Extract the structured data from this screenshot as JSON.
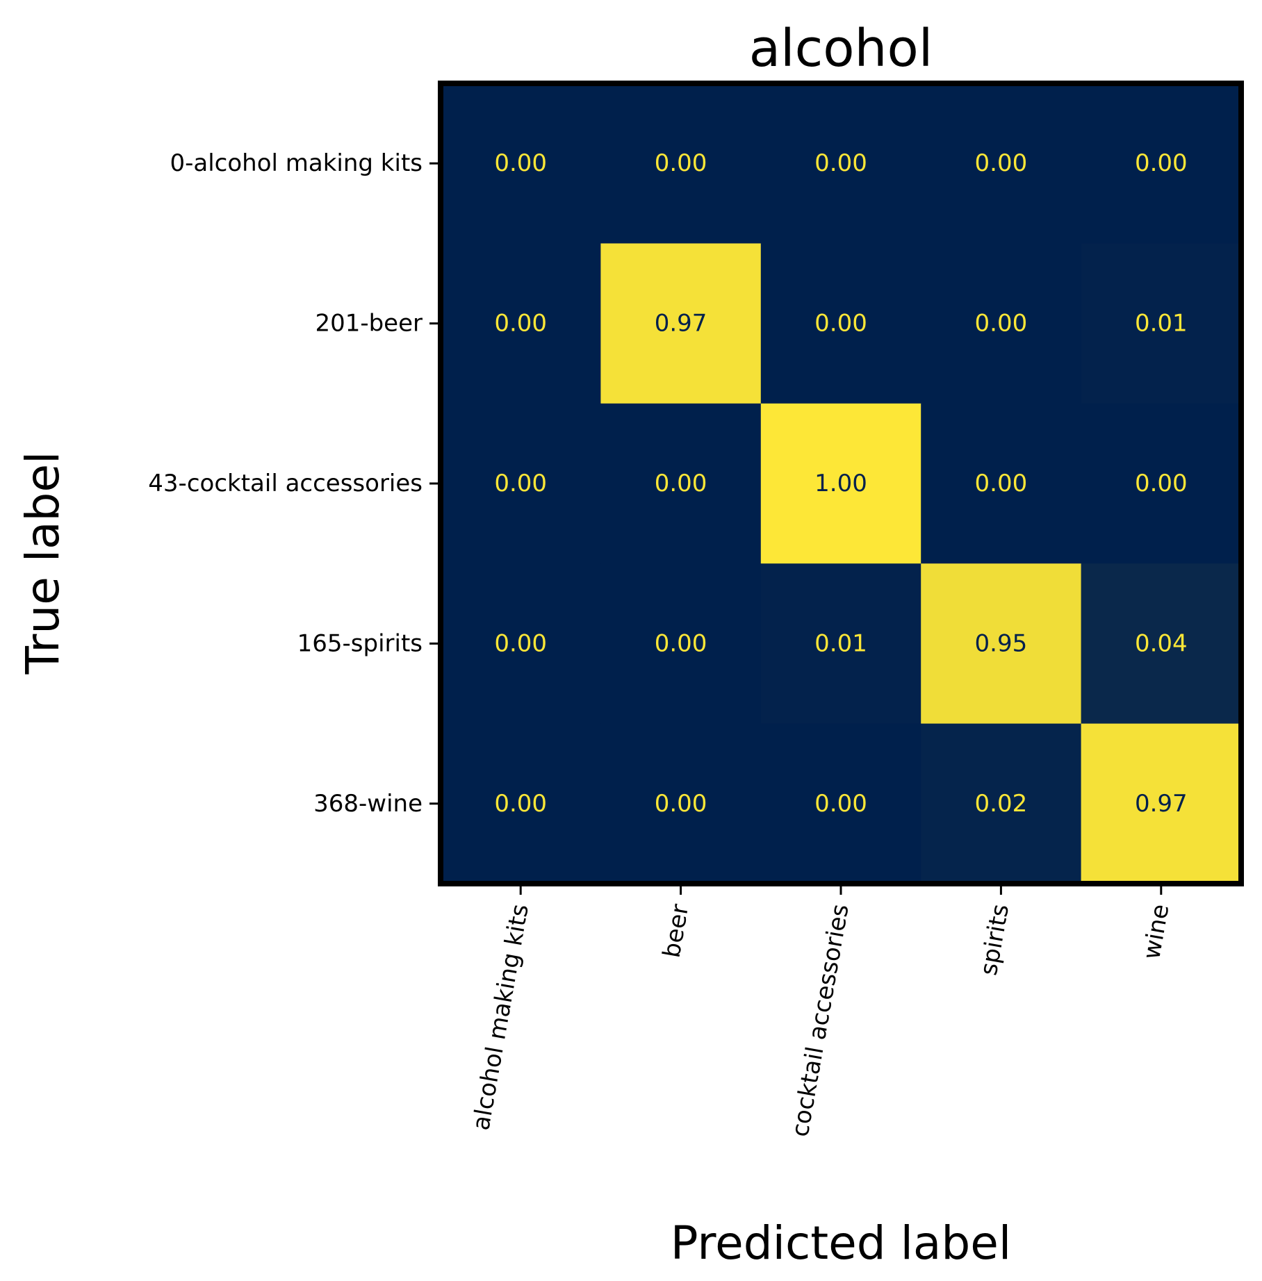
{
  "chart_data": {
    "type": "heatmap",
    "title": "alcohol",
    "xlabel": "Predicted label",
    "ylabel": "True label",
    "x_tick_labels": [
      "alcohol making kits",
      "beer",
      "cocktail accessories",
      "spirits",
      "wine"
    ],
    "y_tick_labels": [
      "0-alcohol making kits",
      "201-beer",
      "43-cocktail accessories",
      "165-spirits",
      "368-wine"
    ],
    "values": [
      [
        0.0,
        0.0,
        0.0,
        0.0,
        0.0
      ],
      [
        0.0,
        0.97,
        0.0,
        0.0,
        0.01
      ],
      [
        0.0,
        0.0,
        1.0,
        0.0,
        0.0
      ],
      [
        0.0,
        0.0,
        0.01,
        0.95,
        0.04
      ],
      [
        0.0,
        0.0,
        0.0,
        0.02,
        0.97
      ]
    ],
    "value_labels": [
      [
        "0.00",
        "0.00",
        "0.00",
        "0.00",
        "0.00"
      ],
      [
        "0.00",
        "0.97",
        "0.00",
        "0.00",
        "0.01"
      ],
      [
        "0.00",
        "0.00",
        "1.00",
        "0.00",
        "0.00"
      ],
      [
        "0.00",
        "0.00",
        "0.01",
        "0.95",
        "0.04"
      ],
      [
        "0.00",
        "0.00",
        "0.00",
        "0.02",
        "0.97"
      ]
    ],
    "colormap": "cividis",
    "color_low": "#00204c",
    "color_high": "#fde737",
    "text_color_on_dark": "#fde737",
    "text_color_on_light": "#00204c",
    "vmin": 0,
    "vmax": 1,
    "grid": false,
    "colorbar": false,
    "frame_color": "#000000"
  }
}
